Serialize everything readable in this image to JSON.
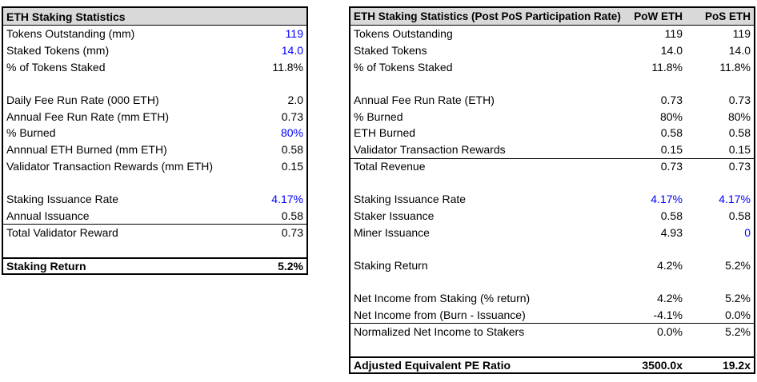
{
  "colors": {
    "header_bg": "#D9D9D9",
    "border": "#000000",
    "blue": "#0000FF",
    "text": "#000000",
    "background": "#FFFFFF"
  },
  "left_table": {
    "title": "ETH Staking Statistics",
    "rows": [
      {
        "label": "Tokens Outstanding (mm)",
        "value": "119",
        "blue": true
      },
      {
        "label": "Staked Tokens (mm)",
        "value": "14.0",
        "blue": true
      },
      {
        "label": "% of Tokens Staked",
        "value": "11.8%"
      },
      {
        "blank": true
      },
      {
        "label": "Daily Fee Run Rate (000 ETH)",
        "value": "2.0"
      },
      {
        "label": "Annual Fee Run Rate (mm ETH)",
        "value": "0.73"
      },
      {
        "label": "% Burned",
        "value": "80%",
        "blue": true
      },
      {
        "label": "Annnual ETH Burned (mm ETH)",
        "value": "0.58"
      },
      {
        "label": "Validator Transaction Rewards (mm ETH)",
        "value": "0.15"
      },
      {
        "blank": true
      },
      {
        "label": "Staking Issuance Rate",
        "value": "4.17%",
        "blue": true
      },
      {
        "label": "Annual Issuance",
        "value": "0.58"
      },
      {
        "label": "Total Validator Reward",
        "value": "0.73",
        "top_border": true
      },
      {
        "blank": true
      },
      {
        "label": "Staking Return",
        "value": "5.2%",
        "box": true
      }
    ]
  },
  "right_table": {
    "title": "ETH Staking Statistics (Post PoS Participation Rate)",
    "col1": "PoW ETH",
    "col2": "PoS ETH",
    "rows": [
      {
        "label": "Tokens Outstanding",
        "values": [
          "119",
          "119"
        ]
      },
      {
        "label": "Staked Tokens",
        "values": [
          "14.0",
          "14.0"
        ]
      },
      {
        "label": "% of Tokens Staked",
        "values": [
          "11.8%",
          "11.8%"
        ]
      },
      {
        "blank": true
      },
      {
        "label": "Annual Fee Run Rate (ETH)",
        "values": [
          "0.73",
          "0.73"
        ]
      },
      {
        "label": "% Burned",
        "values": [
          "80%",
          "80%"
        ]
      },
      {
        "label": "ETH Burned",
        "values": [
          "0.58",
          "0.58"
        ]
      },
      {
        "label": "Validator Transaction Rewards",
        "values": [
          "0.15",
          "0.15"
        ]
      },
      {
        "label": "Total Revenue",
        "values": [
          "0.73",
          "0.73"
        ],
        "top_border": true
      },
      {
        "blank": true
      },
      {
        "label": "Staking Issuance Rate",
        "values": [
          "4.17%",
          "4.17%"
        ],
        "blues": [
          true,
          true
        ]
      },
      {
        "label": "Staker Issuance",
        "values": [
          "0.58",
          "0.58"
        ]
      },
      {
        "label": "Miner Issuance",
        "values": [
          "4.93",
          "0"
        ],
        "blues": [
          false,
          true
        ]
      },
      {
        "blank": true
      },
      {
        "label": "Staking Return",
        "values": [
          "4.2%",
          "5.2%"
        ]
      },
      {
        "blank": true
      },
      {
        "label": "Net Income from Staking (% return)",
        "values": [
          "4.2%",
          "5.2%"
        ]
      },
      {
        "label": "Net Income from (Burn - Issuance)",
        "values": [
          "-4.1%",
          "0.0%"
        ]
      },
      {
        "label": "Normalized Net Income to Stakers",
        "values": [
          "0.0%",
          "5.2%"
        ],
        "top_border": true
      },
      {
        "blank": true
      },
      {
        "label": "Adjusted Equivalent PE Ratio",
        "values": [
          "3500.0x",
          "19.2x"
        ],
        "box": true
      }
    ]
  }
}
